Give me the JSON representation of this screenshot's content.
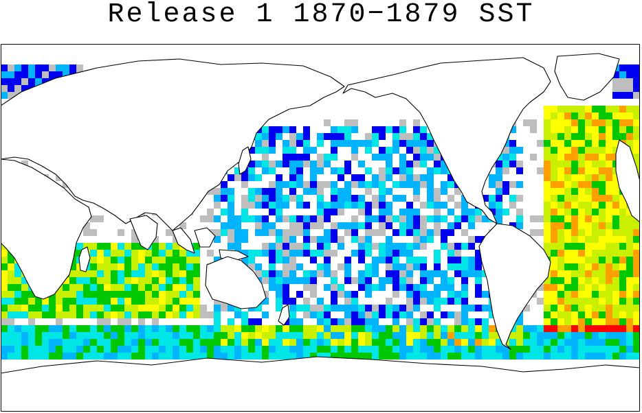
{
  "title": "Release 1 1870−1879 SST",
  "colors": {
    "no_data": "#ffffff",
    "low": "#bebebe",
    "obs_1": "#0000f0",
    "obs_2": "#00b4ff",
    "obs_3": "#00e6e6",
    "obs_4": "#00c800",
    "obs_5": "#c8f000",
    "obs_6": "#ffff00",
    "obs_7": "#ffa000",
    "obs_8": "#ff0000",
    "land_outline": "#000000"
  }
}
